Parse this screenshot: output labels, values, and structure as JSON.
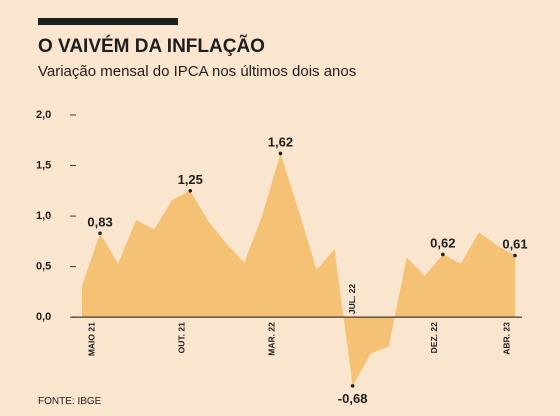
{
  "chart_data": {
    "type": "area",
    "title": "O VAIVÉM DA INFLAÇÃO",
    "subtitle": "Variação mensal do IPCA nos últimos dois anos",
    "source": "FONTE: IBGE",
    "categories": [
      null,
      "MAIO 21",
      null,
      null,
      null,
      null,
      "OUT. 21",
      null,
      null,
      null,
      null,
      "MAR. 22",
      null,
      null,
      null,
      "JUL. 22",
      null,
      null,
      null,
      null,
      "DEZ. 22",
      null,
      null,
      null,
      "ABR. 23"
    ],
    "values": [
      0.31,
      0.83,
      0.53,
      0.96,
      0.87,
      1.16,
      1.25,
      0.95,
      0.73,
      0.54,
      1.01,
      1.62,
      1.06,
      0.47,
      0.67,
      -0.68,
      -0.36,
      -0.29,
      0.59,
      0.41,
      0.62,
      0.53,
      0.84,
      0.71,
      0.61
    ],
    "value_labels": [
      null,
      "0,83",
      null,
      null,
      null,
      null,
      "1,25",
      null,
      null,
      null,
      null,
      "1,62",
      null,
      null,
      null,
      "-0,68",
      null,
      null,
      null,
      null,
      "0,62",
      null,
      null,
      null,
      "0,61"
    ],
    "color": "#f5c174",
    "ylim": [
      -0.8,
      2.0
    ],
    "yticks": [
      {
        "value": 0,
        "label": "0,0"
      },
      {
        "value": 0.5,
        "label": "0,5"
      },
      {
        "value": 1,
        "label": "1,0"
      },
      {
        "value": 1.5,
        "label": "1,5"
      },
      {
        "value": 2,
        "label": "2,0"
      }
    ]
  }
}
